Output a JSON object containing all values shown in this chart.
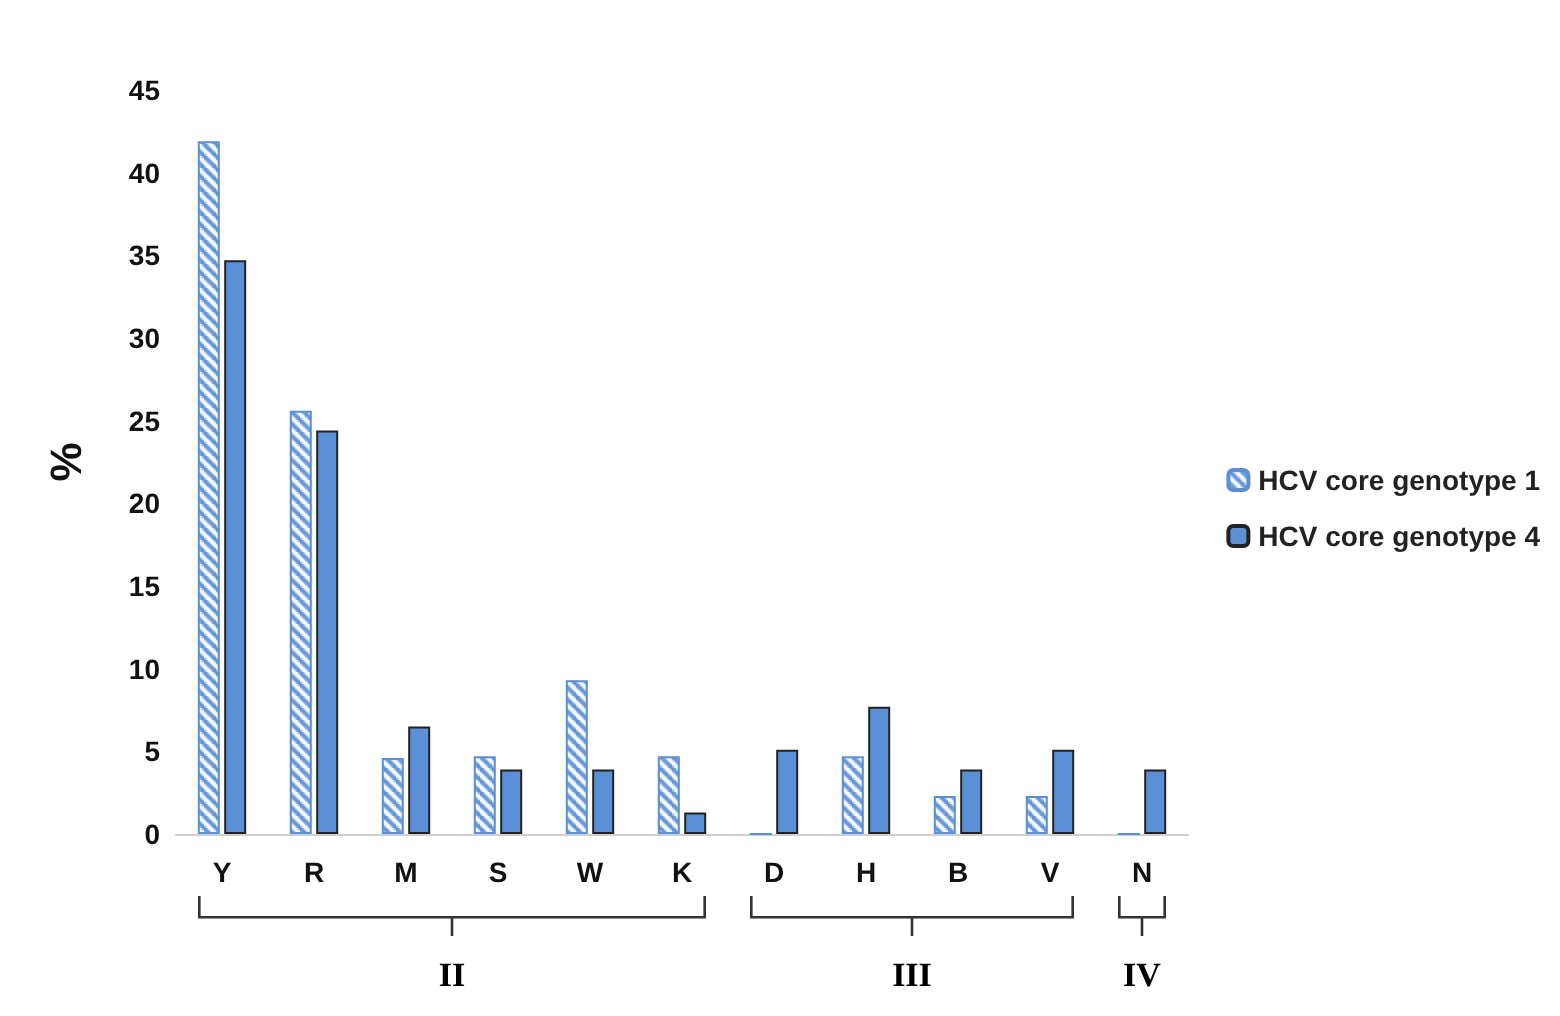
{
  "chart_data": {
    "type": "bar",
    "ylabel": "%",
    "categories": [
      "Y",
      "R",
      "M",
      "S",
      "W",
      "K",
      "D",
      "H",
      "B",
      "V",
      "N"
    ],
    "series": [
      {
        "name": "HCV core genotype 1",
        "color": "#5b8fd6",
        "values": [
          41.9,
          25.6,
          4.6,
          4.7,
          9.3,
          4.7,
          0,
          4.7,
          2.3,
          2.3,
          0
        ]
      },
      {
        "name": "HCV core genotype 4",
        "color": "#5b8fd6",
        "values": [
          34.7,
          24.4,
          6.5,
          3.9,
          3.9,
          1.3,
          5.1,
          7.7,
          3.9,
          5.1,
          3.9
        ]
      }
    ],
    "ylim": [
      0,
      45
    ],
    "yticks": [
      0,
      5,
      10,
      15,
      20,
      25,
      30,
      35,
      40,
      45
    ],
    "grid": false,
    "legend": "right",
    "annotations": [
      "II",
      "III",
      "IV"
    ]
  }
}
